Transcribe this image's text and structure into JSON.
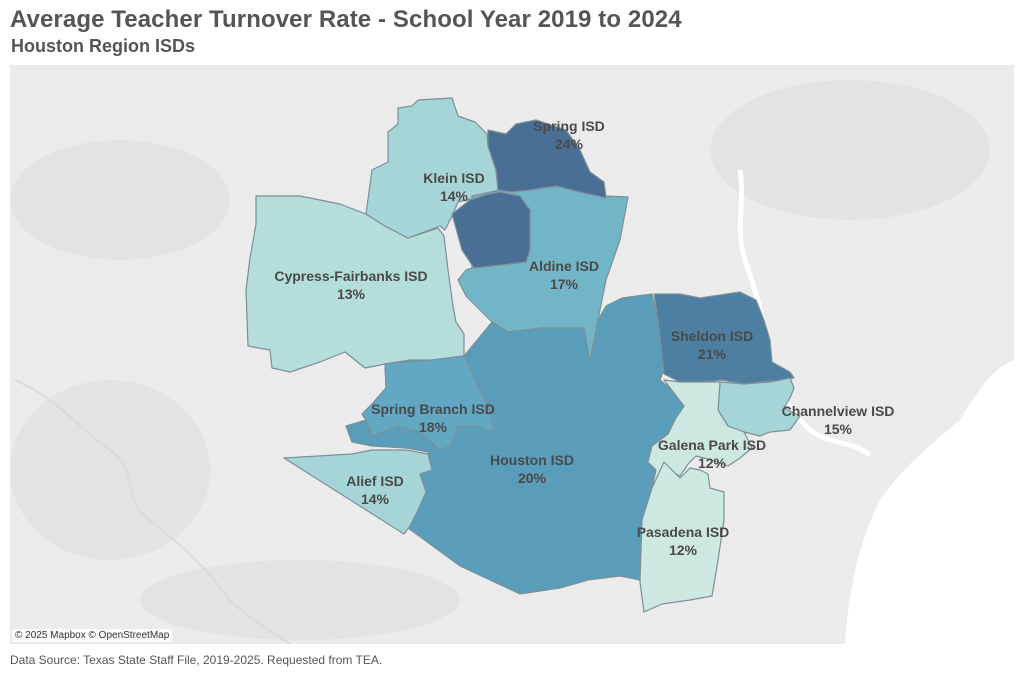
{
  "title": "Average Teacher Turnover Rate - School Year 2019 to 2024",
  "subtitle": "Houston Region ISDs",
  "map_credit": "© 2025 Mapbox © OpenStreetMap",
  "source": "Data Source: Texas State Staff File, 2019-2025. Requested from TEA.",
  "colors": {
    "c12": "#cde8e0",
    "c13": "#b5ddda",
    "c14": "#a6d5d7",
    "c15": "#a6d5d7",
    "c17": "#72b5c7",
    "c18": "#62a8c3",
    "c20": "#5a9dbb",
    "c21": "#4d7fa3",
    "c24": "#4a6f96"
  },
  "districts": [
    {
      "name": "Spring ISD",
      "rate": "24%"
    },
    {
      "name": "Klein ISD",
      "rate": "14%"
    },
    {
      "name": "Cypress-Fairbanks ISD",
      "rate": "13%"
    },
    {
      "name": "Aldine ISD",
      "rate": "17%"
    },
    {
      "name": "Sheldon ISD",
      "rate": "21%"
    },
    {
      "name": "Channelview ISD",
      "rate": "15%"
    },
    {
      "name": "Spring Branch ISD",
      "rate": "18%"
    },
    {
      "name": "Galena Park ISD",
      "rate": "12%"
    },
    {
      "name": "Houston ISD",
      "rate": "20%"
    },
    {
      "name": "Alief ISD",
      "rate": "14%"
    },
    {
      "name": "Pasadena ISD",
      "rate": "12%"
    }
  ]
}
